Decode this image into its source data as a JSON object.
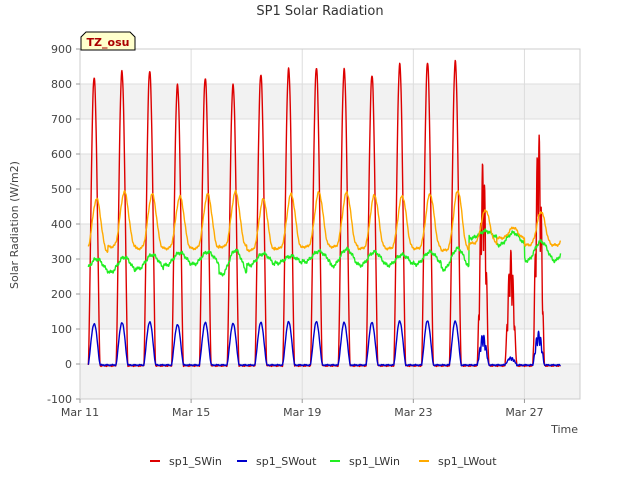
{
  "chart_data": {
    "type": "line",
    "title": "SP1 Solar Radiation",
    "xlabel": "Time",
    "ylabel": "Solar Radiation (W/m2)",
    "badge": "TZ_osu",
    "ylim": [
      -100,
      900
    ],
    "yticks": [
      -100,
      0,
      100,
      200,
      300,
      400,
      500,
      600,
      700,
      800,
      900
    ],
    "xlim_day": [
      0,
      18
    ],
    "xticks": [
      {
        "label": "Mar 11",
        "day": 0
      },
      {
        "label": "Mar 15",
        "day": 4
      },
      {
        "label": "Mar 19",
        "day": 8
      },
      {
        "label": "Mar 23",
        "day": 12
      },
      {
        "label": "Mar 27",
        "day": 16
      }
    ],
    "grid": true,
    "legend_position": "bottom",
    "data_start_day": 0.3,
    "data_end_day": 17.3,
    "series": [
      {
        "name": "sp1_SWin",
        "color": "#dd0000",
        "daily_peaks": [
          820,
          838,
          840,
          800,
          820,
          800,
          830,
          845,
          848,
          842,
          825,
          855,
          860,
          862,
          580,
          320,
          665
        ],
        "night_value": -5
      },
      {
        "name": "sp1_SWout",
        "color": "#0000cc",
        "daily_peaks": [
          115,
          118,
          120,
          112,
          118,
          115,
          118,
          120,
          120,
          118,
          118,
          122,
          123,
          122,
          85,
          20,
          95
        ],
        "night_value": -3
      },
      {
        "name": "sp1_LWin",
        "color": "#22ee22",
        "daily_min": [
          262,
          262,
          272,
          282,
          285,
          255,
          282,
          288,
          292,
          280,
          282,
          282,
          285,
          270,
          360,
          340,
          295
        ],
        "daily_max": [
          300,
          305,
          312,
          318,
          320,
          325,
          315,
          308,
          322,
          328,
          320,
          312,
          320,
          330,
          380,
          375,
          350
        ]
      },
      {
        "name": "sp1_LWout",
        "color": "#ffaa00",
        "daily_min": [
          320,
          335,
          330,
          330,
          330,
          335,
          325,
          330,
          335,
          335,
          330,
          330,
          330,
          325,
          345,
          360,
          340
        ],
        "daily_max": [
          472,
          492,
          485,
          478,
          485,
          492,
          470,
          485,
          490,
          490,
          482,
          480,
          485,
          495,
          440,
          390,
          435
        ]
      }
    ]
  }
}
